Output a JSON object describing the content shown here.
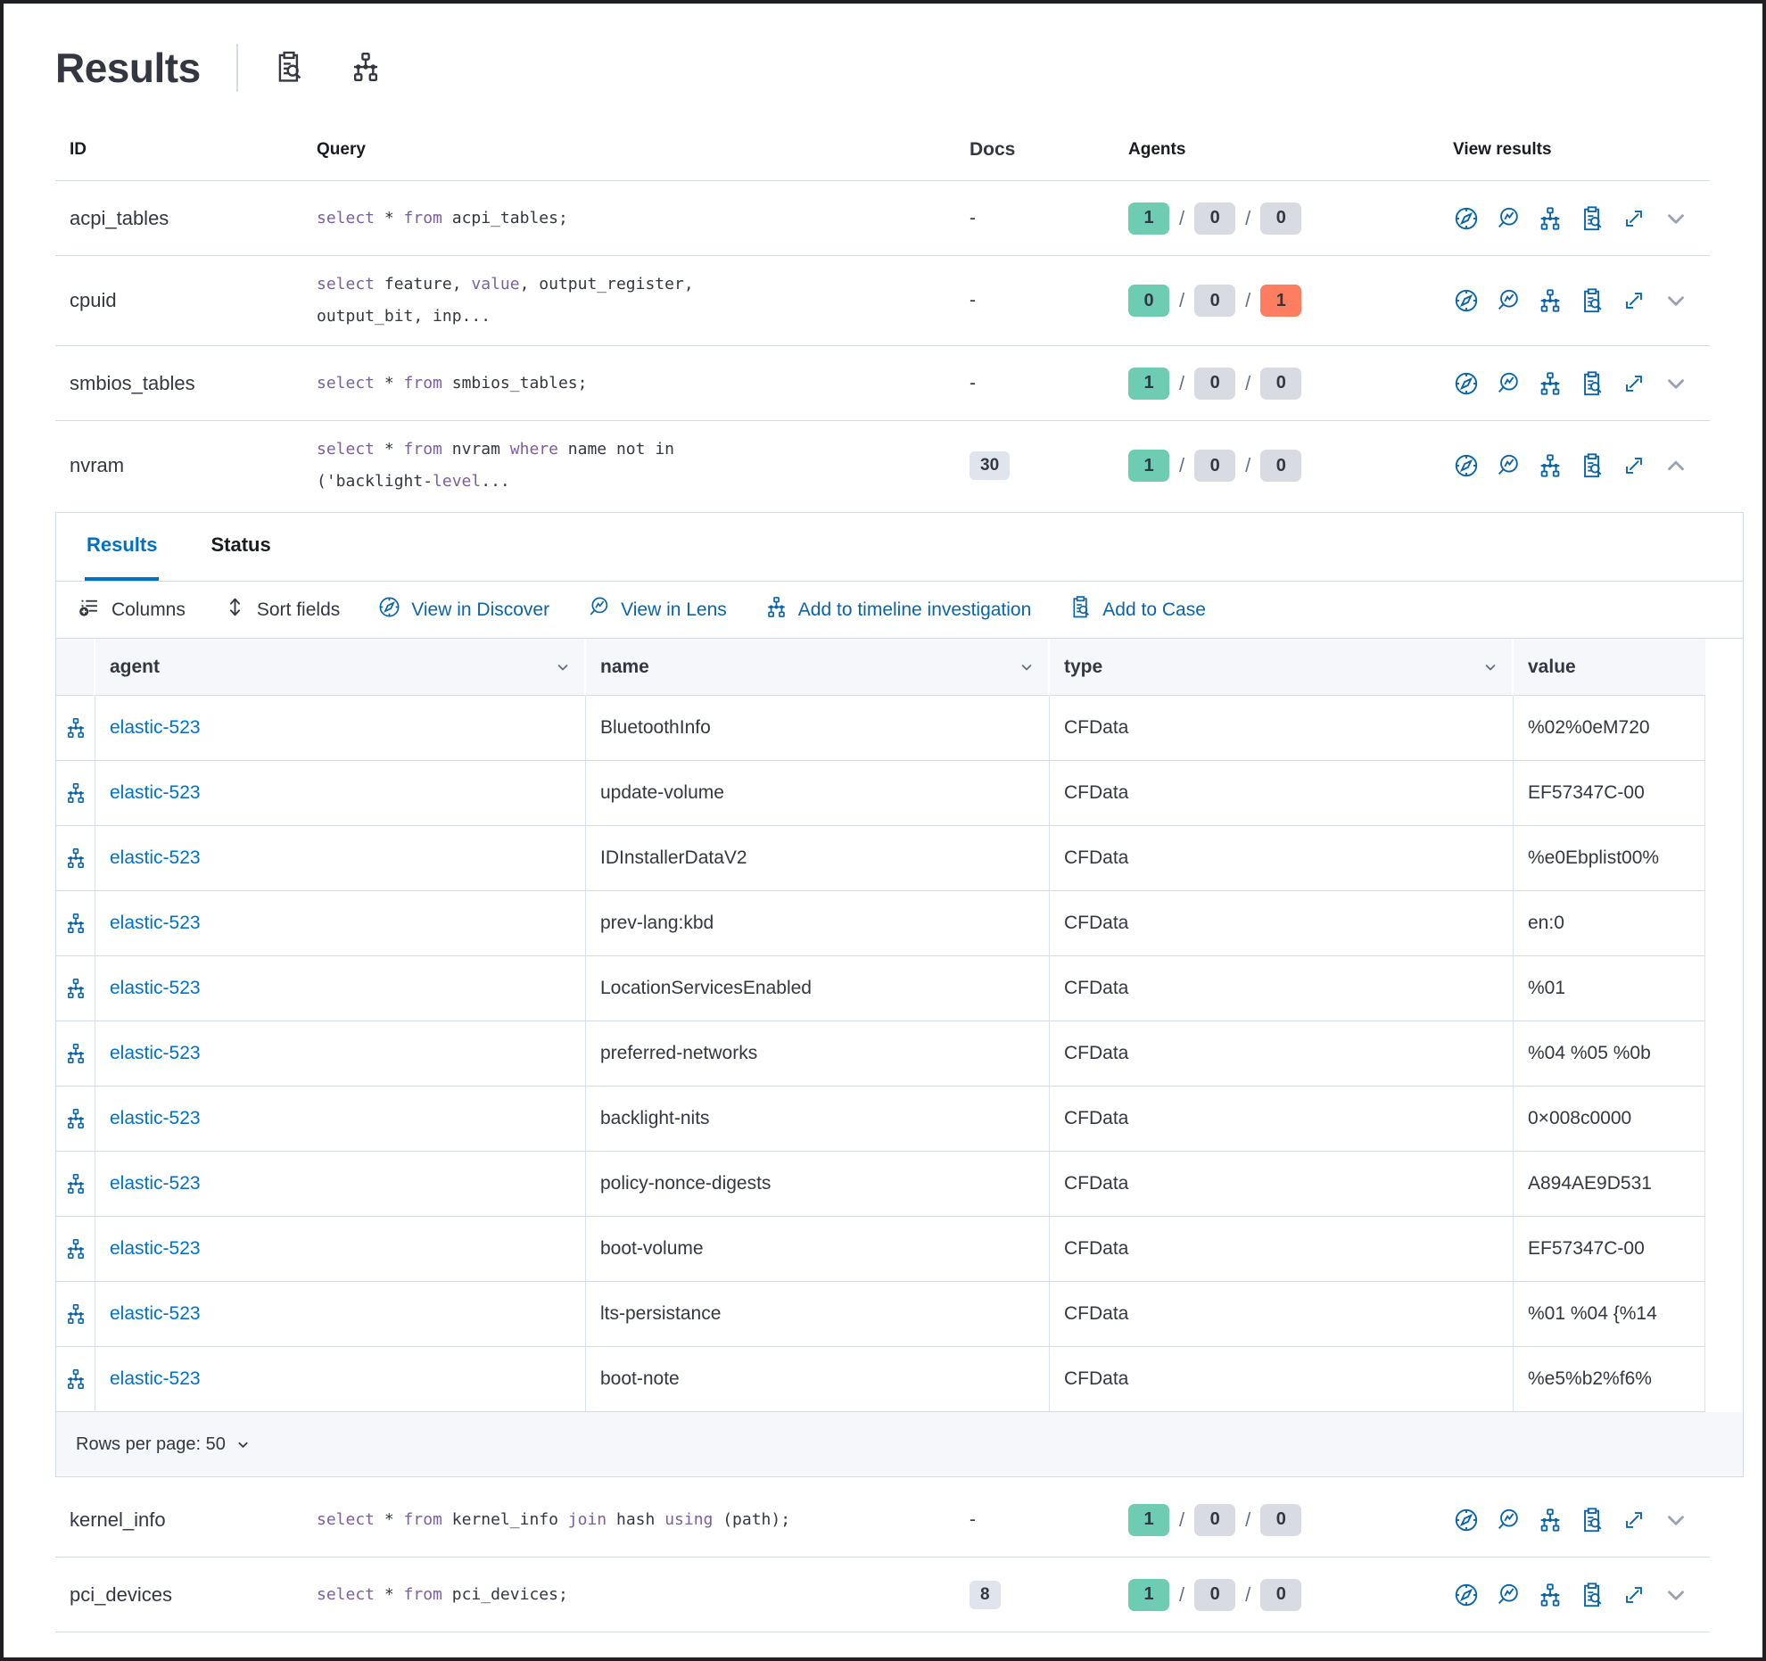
{
  "header": {
    "title": "Results"
  },
  "queries_table": {
    "headers": {
      "id": "ID",
      "query": "Query",
      "docs": "Docs",
      "agents": "Agents",
      "view_results": "View results"
    },
    "rows": [
      {
        "id": "acpi_tables",
        "docs": "-",
        "docs_badge": false,
        "agents": [
          "1",
          "0",
          "0"
        ],
        "failed": false,
        "expanded": false,
        "query": [
          {
            "t": "select",
            "k": 1
          },
          {
            "t": " * ",
            "k": 0
          },
          {
            "t": "from",
            "k": 1
          },
          {
            "t": " acpi_tables;",
            "k": 0
          }
        ]
      },
      {
        "id": "cpuid",
        "docs": "-",
        "docs_badge": false,
        "agents": [
          "0",
          "0",
          "1"
        ],
        "failed": true,
        "expanded": false,
        "query": [
          {
            "t": "select",
            "k": 1
          },
          {
            "t": " feature, ",
            "k": 0
          },
          {
            "t": "value",
            "k": 1
          },
          {
            "t": ", output_register,\noutput_bit, inp...",
            "k": 0
          }
        ]
      },
      {
        "id": "smbios_tables",
        "docs": "-",
        "docs_badge": false,
        "agents": [
          "1",
          "0",
          "0"
        ],
        "failed": false,
        "expanded": false,
        "query": [
          {
            "t": "select",
            "k": 1
          },
          {
            "t": " * ",
            "k": 0
          },
          {
            "t": "from",
            "k": 1
          },
          {
            "t": " smbios_tables;",
            "k": 0
          }
        ]
      },
      {
        "id": "nvram",
        "docs": "30",
        "docs_badge": true,
        "agents": [
          "1",
          "0",
          "0"
        ],
        "failed": false,
        "expanded": true,
        "query": [
          {
            "t": "select",
            "k": 1
          },
          {
            "t": " * ",
            "k": 0
          },
          {
            "t": "from",
            "k": 1
          },
          {
            "t": " nvram ",
            "k": 0
          },
          {
            "t": "where",
            "k": 1
          },
          {
            "t": " name not in\n('backlight-",
            "k": 0
          },
          {
            "t": "level",
            "k": 1
          },
          {
            "t": "...",
            "k": 0
          }
        ]
      },
      {
        "id": "kernel_info",
        "docs": "-",
        "docs_badge": false,
        "agents": [
          "1",
          "0",
          "0"
        ],
        "failed": false,
        "expanded": false,
        "query": [
          {
            "t": "select",
            "k": 1
          },
          {
            "t": " * ",
            "k": 0
          },
          {
            "t": "from",
            "k": 1
          },
          {
            "t": " kernel_info ",
            "k": 0
          },
          {
            "t": "join",
            "k": 1
          },
          {
            "t": " hash ",
            "k": 0
          },
          {
            "t": "using",
            "k": 1
          },
          {
            "t": " (path);",
            "k": 0
          }
        ]
      },
      {
        "id": "pci_devices",
        "docs": "8",
        "docs_badge": true,
        "agents": [
          "1",
          "0",
          "0"
        ],
        "failed": false,
        "expanded": false,
        "query": [
          {
            "t": "select",
            "k": 1
          },
          {
            "t": " * ",
            "k": 0
          },
          {
            "t": "from",
            "k": 1
          },
          {
            "t": " pci_devices;",
            "k": 0
          }
        ]
      }
    ]
  },
  "panel": {
    "tabs": {
      "results": "Results",
      "status": "Status"
    },
    "active_tab": "Results",
    "toolbar": {
      "columns": "Columns",
      "sort_fields": "Sort fields",
      "view_in_discover": "View in Discover",
      "view_in_lens": "View in Lens",
      "add_to_timeline": "Add to timeline investigation",
      "add_to_case": "Add to Case"
    },
    "grid": {
      "headers": {
        "agent": "agent",
        "name": "name",
        "type": "type",
        "value": "value"
      },
      "rows": [
        {
          "agent": "elastic-523",
          "name": "BluetoothInfo",
          "type": "CFData",
          "value": "%02%0eM720"
        },
        {
          "agent": "elastic-523",
          "name": "update-volume",
          "type": "CFData",
          "value": "EF57347C-00"
        },
        {
          "agent": "elastic-523",
          "name": "IDInstallerDataV2",
          "type": "CFData",
          "value": "%e0Ebplist00%"
        },
        {
          "agent": "elastic-523",
          "name": "prev-lang:kbd",
          "type": "CFData",
          "value": "en:0"
        },
        {
          "agent": "elastic-523",
          "name": "LocationServicesEnabled",
          "type": "CFData",
          "value": "%01"
        },
        {
          "agent": "elastic-523",
          "name": "preferred-networks",
          "type": "CFData",
          "value": "%04 %05 %0b"
        },
        {
          "agent": "elastic-523",
          "name": "backlight-nits",
          "type": "CFData",
          "value": "0×008c0000"
        },
        {
          "agent": "elastic-523",
          "name": "policy-nonce-digests",
          "type": "CFData",
          "value": "A894AE9D531"
        },
        {
          "agent": "elastic-523",
          "name": "boot-volume",
          "type": "CFData",
          "value": "EF57347C-00"
        },
        {
          "agent": "elastic-523",
          "name": "lts-persistance",
          "type": "CFData",
          "value": "%01 %04 {%14"
        },
        {
          "agent": "elastic-523",
          "name": "boot-note",
          "type": "CFData",
          "value": "%e5%b2%f6%"
        }
      ]
    },
    "footer": {
      "rows_per_page": "Rows per page: 50"
    }
  },
  "colors": {
    "primary_blue": "#0071c2",
    "action_blue": "#0b64a8",
    "link_blue": "#0071c9",
    "success_green": "#6dccb1",
    "danger_red": "#ff7e62",
    "neutral_badge": "#d9dbe2",
    "keyword_purple": "#7c609e",
    "border": "#d3dae6",
    "text_dark": "#343741"
  },
  "icons": {
    "inspect": "clipboard-magnifier",
    "timeline": "network-nodes",
    "discover": "compass",
    "lens": "magnifier-chart",
    "case": "clipboard-magnifier",
    "expand": "diagonal-arrows",
    "chevron_down": "chevron-down",
    "chevron_up": "chevron-up",
    "columns": "list-plus",
    "sort": "up-down-arrows"
  }
}
